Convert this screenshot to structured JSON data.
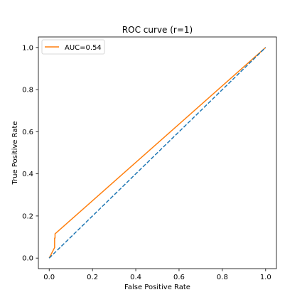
{
  "chart_data": {
    "type": "line",
    "title": "ROC curve (r=1)",
    "xlabel": "False Positive Rate",
    "ylabel": "True Positive Rate",
    "xlim": [
      -0.05,
      1.05
    ],
    "ylim": [
      -0.05,
      1.05
    ],
    "xticks": [
      0.0,
      0.2,
      0.4,
      0.6,
      0.8,
      1.0
    ],
    "yticks": [
      0.0,
      0.2,
      0.4,
      0.6,
      0.8,
      1.0
    ],
    "xtick_labels": [
      "0.0",
      "0.2",
      "0.4",
      "0.6",
      "0.8",
      "1.0"
    ],
    "ytick_labels": [
      "0.0",
      "0.2",
      "0.4",
      "0.6",
      "0.8",
      "1.0"
    ],
    "grid": false,
    "legend_position": "top-left",
    "series": [
      {
        "name": "AUC=0.54",
        "color": "#ff7f0e",
        "style": "solid",
        "x": [
          0.0,
          0.005,
          0.01,
          0.02,
          0.025,
          0.025,
          0.027,
          0.027,
          1.0
        ],
        "y": [
          0.0,
          0.01,
          0.02,
          0.04,
          0.05,
          0.095,
          0.095,
          0.115,
          1.0
        ]
      },
      {
        "color": "#1f77b4",
        "style": "dashed",
        "x": [
          0.0,
          1.0
        ],
        "y": [
          0.0,
          1.0
        ]
      }
    ]
  }
}
